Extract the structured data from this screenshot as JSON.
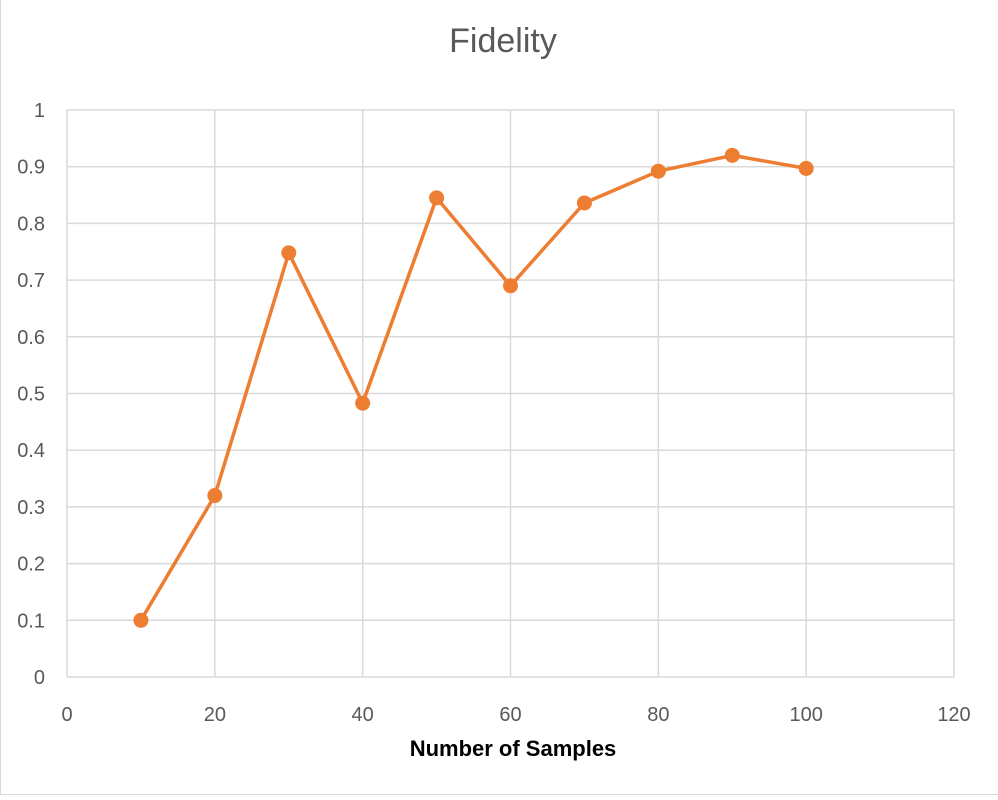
{
  "chart_data": {
    "type": "scatter",
    "title": "Fidelity",
    "xlabel": "Number of Samples",
    "ylabel": "",
    "xlim": [
      0,
      120
    ],
    "ylim": [
      0,
      1
    ],
    "x_ticks": [
      0,
      20,
      40,
      60,
      80,
      100,
      120
    ],
    "y_ticks": [
      0,
      0.1,
      0.2,
      0.3,
      0.4,
      0.5,
      0.6,
      0.7,
      0.8,
      0.9,
      1
    ],
    "x_tick_labels": [
      "0",
      "20",
      "40",
      "60",
      "80",
      "100",
      "120"
    ],
    "y_tick_labels": [
      "0",
      "0.1",
      "0.2",
      "0.3",
      "0.4",
      "0.5",
      "0.6",
      "0.7",
      "0.8",
      "0.9",
      "1"
    ],
    "grid": true,
    "legend": "none",
    "series": [
      {
        "color": "#ED7D31",
        "lines": true,
        "markers": true,
        "x": [
          10,
          20,
          30,
          40,
          50,
          60,
          70,
          80,
          90,
          100
        ],
        "y": [
          0.1,
          0.32,
          0.748,
          0.483,
          0.845,
          0.69,
          0.836,
          0.892,
          0.92,
          0.897
        ]
      }
    ]
  }
}
